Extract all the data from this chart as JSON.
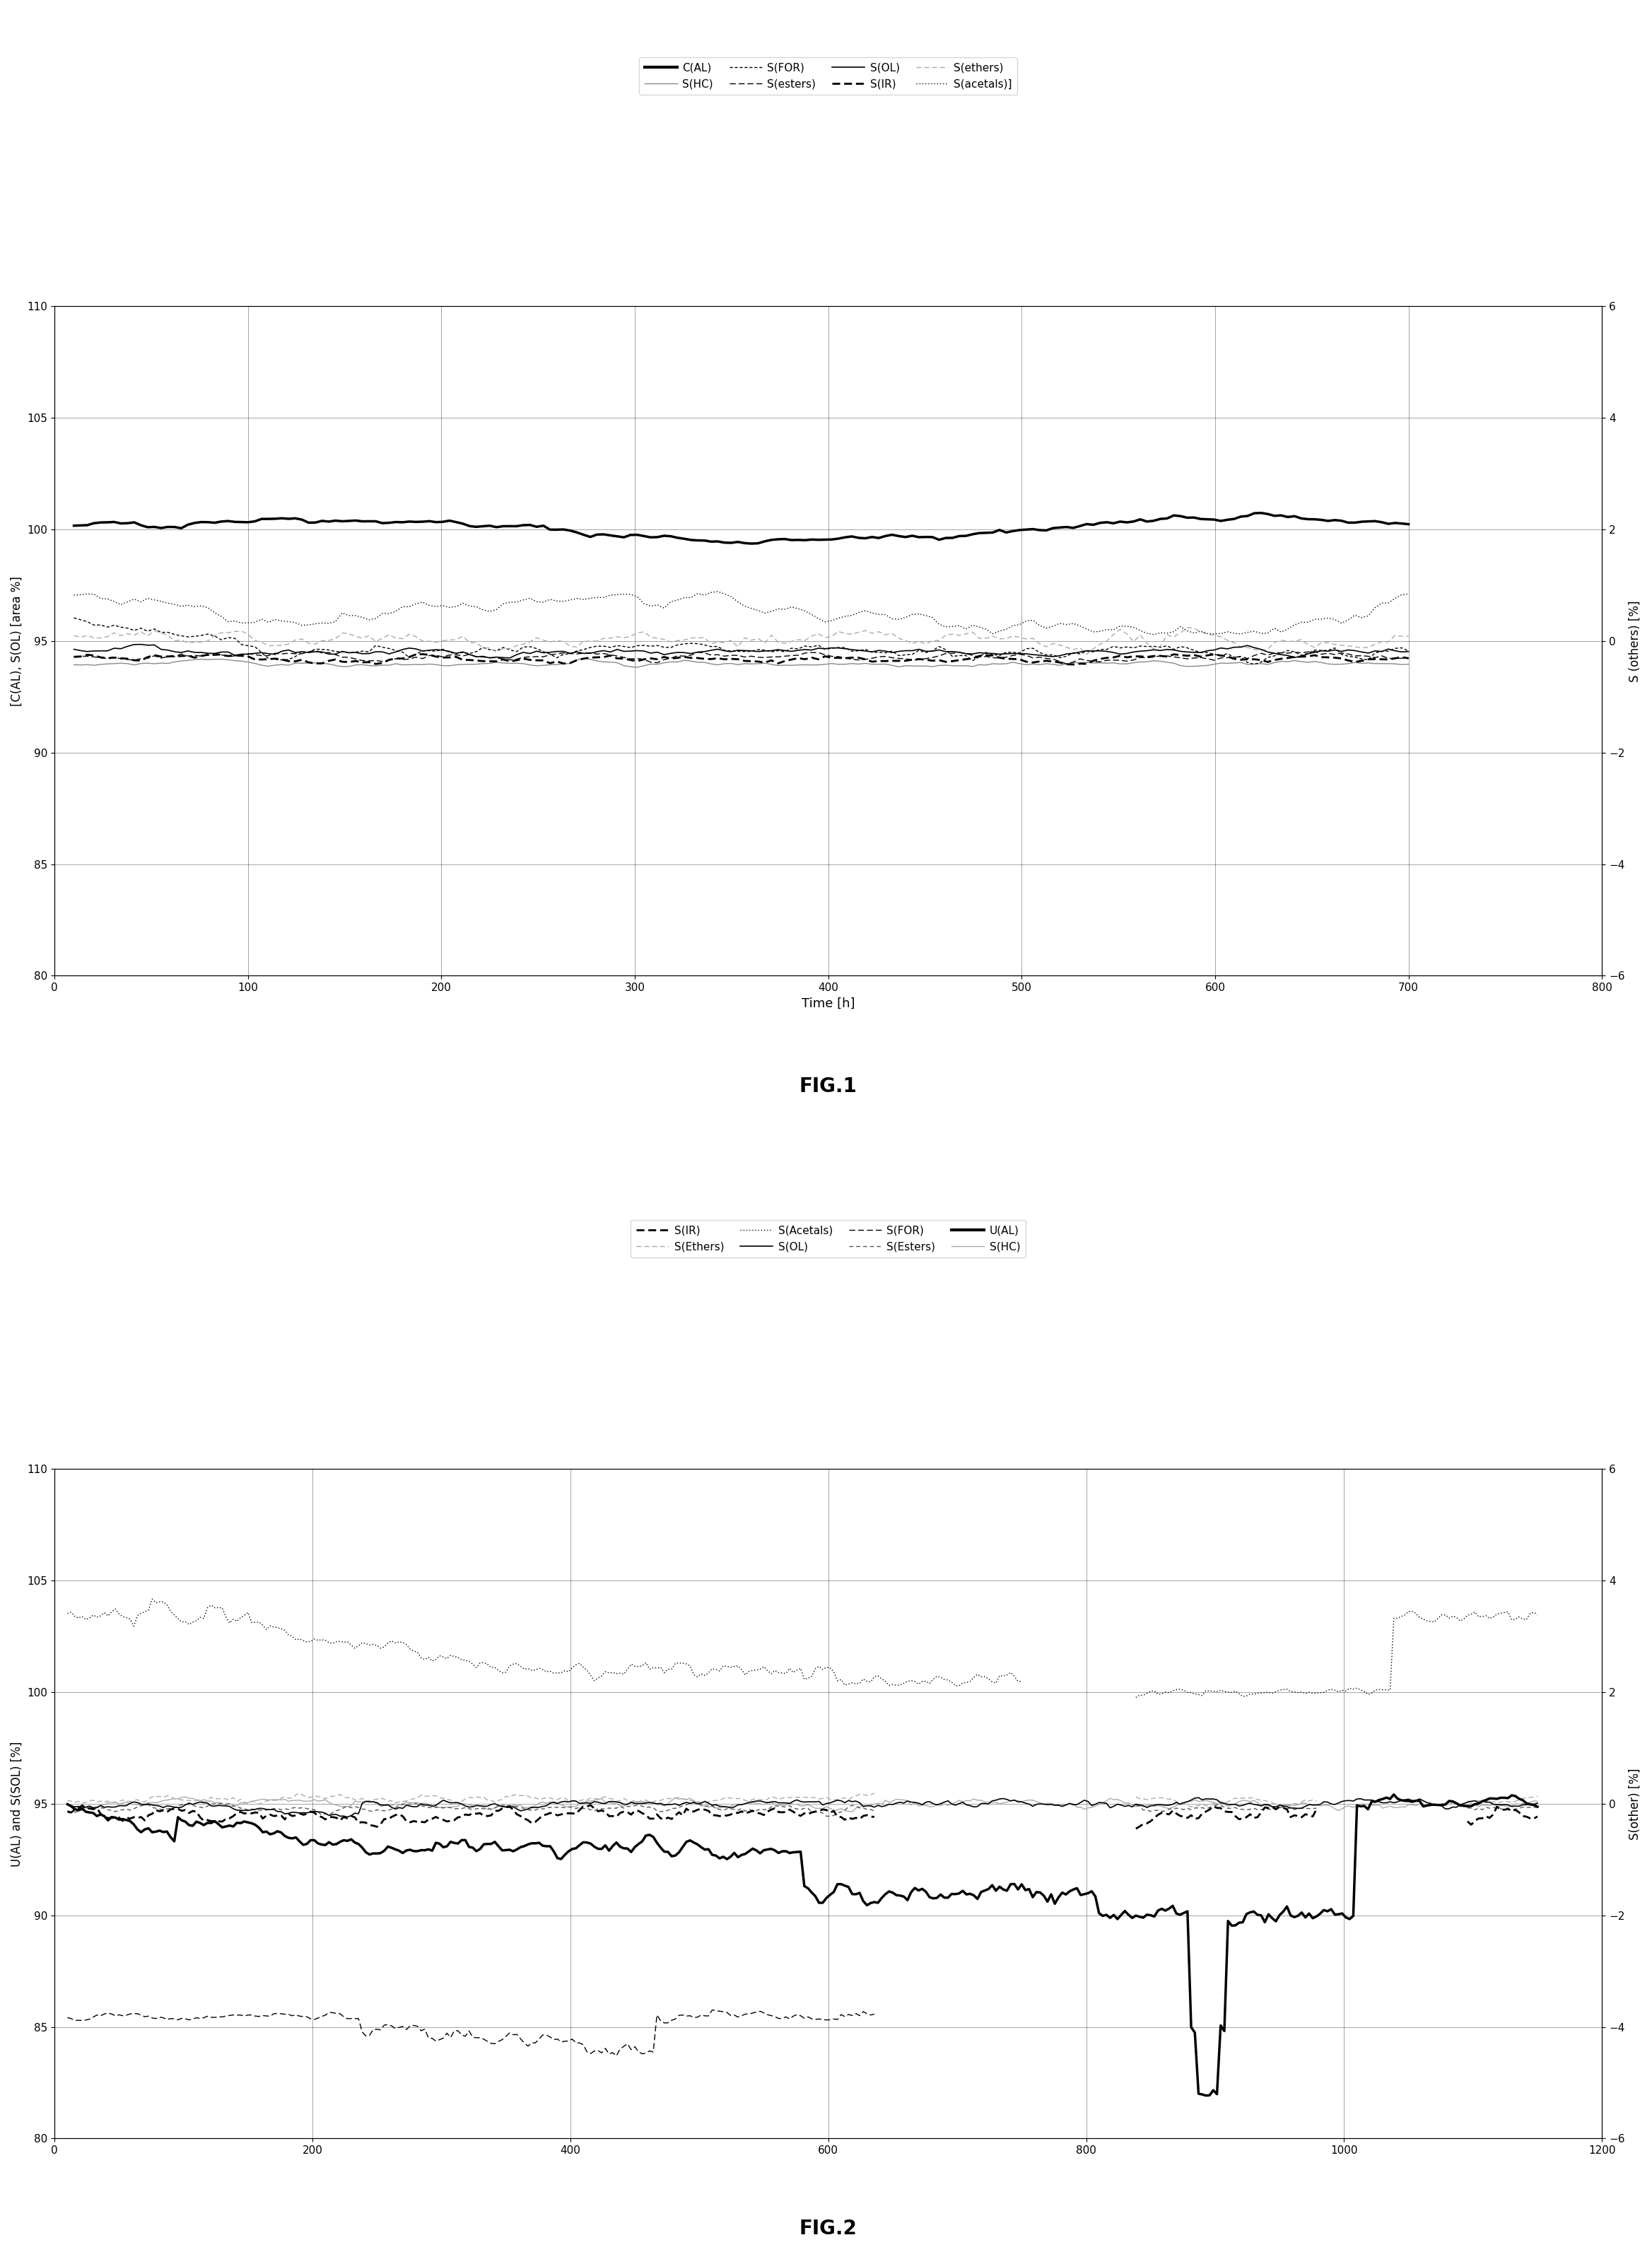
{
  "fig1": {
    "title": "FIG.1",
    "xlabel": "Time [h]",
    "ylabel_left": "[C(AL), S(OL) [area %]",
    "ylabel_right": "S (others) [%]",
    "xlim": [
      0,
      800
    ],
    "ylim_left": [
      80,
      110
    ],
    "ylim_right": [
      -6,
      6
    ],
    "xticks": [
      0,
      100,
      200,
      300,
      400,
      500,
      600,
      700,
      800
    ],
    "yticks_left": [
      80,
      85,
      90,
      95,
      100,
      105,
      110
    ],
    "yticks_right": [
      -6,
      -4,
      -2,
      0,
      2,
      4,
      6
    ],
    "legend1": [
      {
        "label": "C(AL)",
        "lw": 3,
        "ls": "-",
        "color": "#000000"
      },
      {
        "label": "S(HC)",
        "lw": 1,
        "ls": "-",
        "color": "#000000"
      },
      {
        "label": "S(FOR)",
        "lw": 1,
        "ls": ":",
        "color": "#000000",
        "dashes": [
          2,
          2
        ]
      },
      {
        "label": "S(esters)",
        "lw": 1,
        "ls": "--",
        "color": "#000000"
      },
      {
        "label": "S(OL)",
        "lw": 1.5,
        "ls": "-",
        "color": "#000000"
      },
      {
        "label": "S(IR)",
        "lw": 2,
        "ls": ":",
        "color": "#000000",
        "dashes": [
          4,
          2
        ]
      },
      {
        "label": "S(ethers)",
        "lw": 1,
        "ls": "--",
        "color": "#aaaaaa",
        "dashes": [
          4,
          2
        ]
      },
      {
        "label": "S(acetals)]",
        "lw": 1,
        "ls": ":",
        "color": "#000000",
        "dashes": [
          1,
          1
        ]
      }
    ]
  },
  "fig2": {
    "title": "FIG.2",
    "xlabel": "",
    "ylabel_left": "U(AL) and S(SOL) [%]",
    "ylabel_right": "S(other) [%]",
    "xlim": [
      0,
      1200
    ],
    "ylim_left": [
      80,
      110
    ],
    "ylim_right": [
      -6,
      6
    ],
    "xticks": [
      0,
      200,
      400,
      600,
      800,
      1000,
      1200
    ],
    "yticks_left": [
      80,
      85,
      90,
      95,
      100,
      105,
      110
    ],
    "yticks_right": [
      -6,
      -4,
      -2,
      0,
      2,
      4,
      6
    ],
    "legend1": [
      {
        "label": "S(IR)",
        "lw": 2,
        "ls": ":",
        "color": "#000000",
        "dashes": [
          4,
          2
        ]
      },
      {
        "label": "S(Ethers)",
        "lw": 1,
        "ls": "--",
        "color": "#aaaaaa",
        "dashes": [
          4,
          2
        ]
      },
      {
        "label": "S(Acetals)",
        "lw": 1,
        "ls": ":",
        "color": "#000000",
        "dashes": [
          1,
          1
        ]
      },
      {
        "label": "S(OL)",
        "lw": 1.5,
        "ls": "-",
        "color": "#000000"
      },
      {
        "label": "S(FOR)",
        "lw": 1,
        "ls": "--",
        "color": "#000000"
      },
      {
        "label": "S(Esters)",
        "lw": 1,
        "ls": "--",
        "color": "#555555"
      },
      {
        "label": "U(AL)",
        "lw": 3,
        "ls": "-",
        "color": "#000000"
      },
      {
        "label": "S(HC)",
        "lw": 1,
        "ls": "-",
        "color": "#aaaaaa"
      }
    ]
  }
}
